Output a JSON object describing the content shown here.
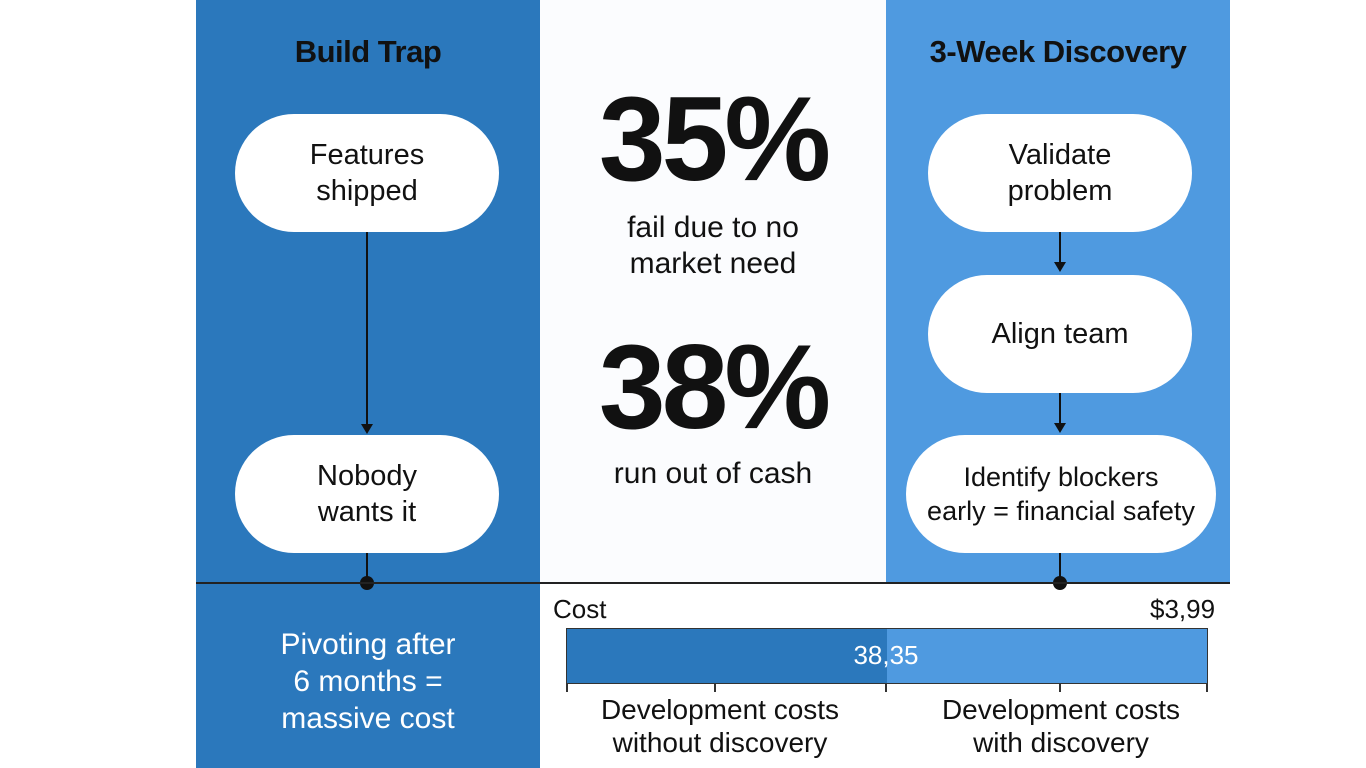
{
  "left": {
    "title": "Build Trap",
    "steps": [
      "Features\nshipped",
      "Nobody\nwants it"
    ],
    "outcome": "Pivoting after\n6 months =\nmassive cost"
  },
  "middle": {
    "stats": [
      {
        "value": "35%",
        "label": "fail due to no\nmarket need"
      },
      {
        "value": "38%",
        "label": "run out of cash"
      }
    ]
  },
  "right": {
    "title": "3-Week Discovery",
    "steps": [
      "Validate\nproblem",
      "Align team",
      "Identify blockers\nearly = financial safety"
    ]
  },
  "cost": {
    "title": "Cost",
    "max_label": "$3,99",
    "bar_value_label": "38,35",
    "split_fraction": 0.5,
    "categories": [
      "Development costs\nwithout discovery",
      "Development costs\nwith discovery"
    ]
  },
  "colors": {
    "dark_blue": "#2b78bc",
    "light_blue": "#4f9ae0"
  }
}
